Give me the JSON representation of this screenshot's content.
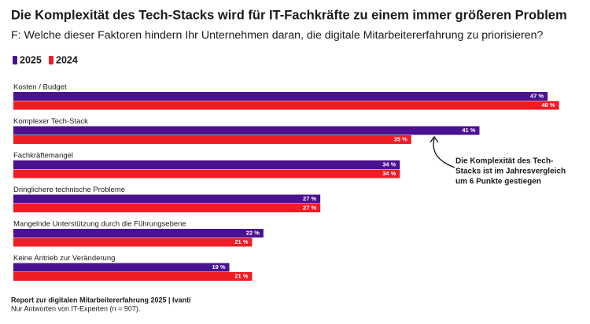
{
  "chart_data": {
    "type": "bar",
    "orientation": "horizontal",
    "title": "Die Komplexität des Tech-Stacks wird für IT-Fachkräfte zu einem immer größeren Problem",
    "subtitle": "F: Welche dieser Faktoren hindern Ihr Unternehmen daran, die digitale Mitarbeitererfahrung zu priorisieren?",
    "categories": [
      "Kosten / Budget",
      "Komplexer Tech-Stack",
      "Fachkräftemangel",
      "Dringlichere technische Probleme",
      "Mangelnde Unterstützung durch die Führungsebene",
      "Keine Antrieb zur Veränderung"
    ],
    "series": [
      {
        "name": "2025",
        "color": "#4a1190",
        "values": [
          47,
          41,
          34,
          27,
          22,
          19
        ],
        "value_labels": [
          "47 %",
          "41 %",
          "34 %",
          "27 %",
          "22 %",
          "19 %"
        ]
      },
      {
        "name": "2024",
        "color": "#ef1c24",
        "values": [
          48,
          35,
          34,
          27,
          21,
          21
        ],
        "value_labels": [
          "48 %",
          "35 %",
          "34 %",
          "27 %",
          "21 %",
          "21 %"
        ]
      }
    ],
    "legend": "top-left",
    "annotation": [
      "Die Komplexität des Tech-",
      "Stacks ist im Jahresvergleich",
      "um 6 Punkte gestiegen"
    ],
    "source": "Report zur digitalen Mitarbeitererfahrung 2025 | Ivanti",
    "note": "Nur Antworten von IT-Experten (n = 907)."
  }
}
